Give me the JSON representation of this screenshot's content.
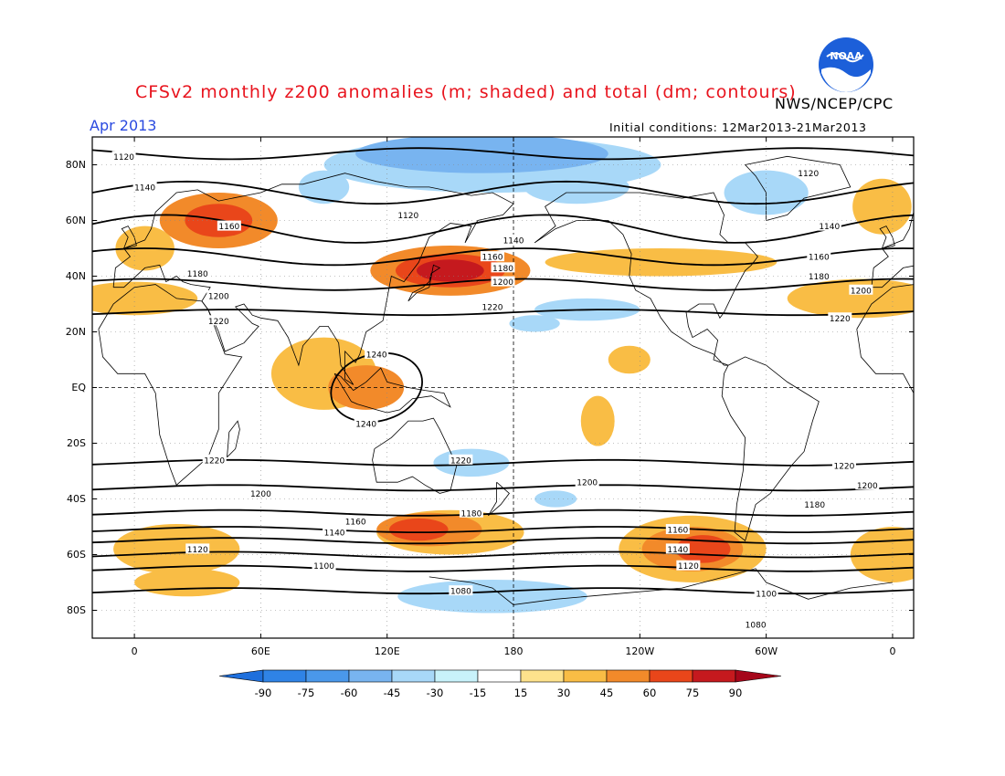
{
  "header": {
    "title": "CFSv2 monthly z200 anomalies (m; shaded) and total (dm; contours)",
    "agency": "NWS/NCEP/CPC",
    "month": "Apr 2013",
    "initial_conditions": "Initial conditions: 12Mar2013-21Mar2013",
    "logo_text": "NOAA"
  },
  "map": {
    "lat_labels": [
      "80N",
      "60N",
      "40N",
      "20N",
      "EQ",
      "20S",
      "40S",
      "60S",
      "80S"
    ],
    "lat_values": [
      80,
      60,
      40,
      20,
      0,
      -20,
      -40,
      -60,
      -80
    ],
    "lon_labels": [
      "0",
      "60E",
      "120E",
      "180",
      "120W",
      "60W",
      "0"
    ],
    "lon_values": [
      0,
      60,
      120,
      180,
      240,
      300,
      360
    ],
    "lat_range": [
      -90,
      90
    ],
    "lon_range": [
      -20,
      370
    ],
    "contours": [
      {
        "label": "1120",
        "lat": 84,
        "amp": -2,
        "phase": 0
      },
      {
        "label": "1140",
        "lat": 70,
        "amp": 4,
        "phase": 20
      },
      {
        "label": "1160",
        "lat": 57,
        "amp": 5,
        "phase": 30
      },
      {
        "label": "1180",
        "lat": 47,
        "amp": 3,
        "phase": 40
      },
      {
        "label": "1200",
        "lat": 37,
        "amp": 2,
        "phase": 40
      },
      {
        "label": "1220",
        "lat": 27,
        "amp": 1,
        "phase": 0
      },
      {
        "label": "1220",
        "lat": -27,
        "amp": 1,
        "phase": 0
      },
      {
        "label": "1200",
        "lat": -36,
        "amp": 1,
        "phase": 0
      },
      {
        "label": "1180",
        "lat": -45,
        "amp": 1,
        "phase": 0
      },
      {
        "label": "1160",
        "lat": -51,
        "amp": 1,
        "phase": 0
      },
      {
        "label": "1140",
        "lat": -55,
        "amp": 1,
        "phase": 0
      },
      {
        "label": "1120",
        "lat": -60,
        "amp": 1,
        "phase": 0
      },
      {
        "label": "1100",
        "lat": -65,
        "amp": 1,
        "phase": 0
      },
      {
        "label": "1080",
        "lat": -73,
        "amp": 1,
        "phase": 0
      }
    ],
    "contour_label_positions": [
      {
        "text": "1120",
        "lon": -5,
        "lat": 83
      },
      {
        "text": "1120",
        "lon": 320,
        "lat": 77
      },
      {
        "text": "1140",
        "lon": 5,
        "lat": 72
      },
      {
        "text": "1120",
        "lon": 130,
        "lat": 62
      },
      {
        "text": "1160",
        "lon": 45,
        "lat": 58
      },
      {
        "text": "1140",
        "lon": 180,
        "lat": 53
      },
      {
        "text": "1140",
        "lon": 330,
        "lat": 58
      },
      {
        "text": "1160",
        "lon": 170,
        "lat": 47
      },
      {
        "text": "1180",
        "lon": 175,
        "lat": 43
      },
      {
        "text": "1200",
        "lon": 175,
        "lat": 38
      },
      {
        "text": "1160",
        "lon": 325,
        "lat": 47
      },
      {
        "text": "1180",
        "lon": 30,
        "lat": 41
      },
      {
        "text": "1180",
        "lon": 325,
        "lat": 40
      },
      {
        "text": "1200",
        "lon": 40,
        "lat": 33
      },
      {
        "text": "1200",
        "lon": 345,
        "lat": 35
      },
      {
        "text": "1220",
        "lon": 40,
        "lat": 24
      },
      {
        "text": "1220",
        "lon": 170,
        "lat": 29
      },
      {
        "text": "1220",
        "lon": 335,
        "lat": 25
      },
      {
        "text": "1240",
        "lon": 115,
        "lat": 12
      },
      {
        "text": "1240",
        "lon": 110,
        "lat": -13
      },
      {
        "text": "1220",
        "lon": 38,
        "lat": -26
      },
      {
        "text": "1220",
        "lon": 155,
        "lat": -26
      },
      {
        "text": "1220",
        "lon": 337,
        "lat": -28
      },
      {
        "text": "1200",
        "lon": 60,
        "lat": -38
      },
      {
        "text": "1200",
        "lon": 215,
        "lat": -34
      },
      {
        "text": "1200",
        "lon": 348,
        "lat": -35
      },
      {
        "text": "1180",
        "lon": 160,
        "lat": -45
      },
      {
        "text": "1180",
        "lon": 323,
        "lat": -42
      },
      {
        "text": "1160",
        "lon": 105,
        "lat": -48
      },
      {
        "text": "1160",
        "lon": 258,
        "lat": -51
      },
      {
        "text": "1140",
        "lon": 95,
        "lat": -52
      },
      {
        "text": "1140",
        "lon": 258,
        "lat": -58
      },
      {
        "text": "1120",
        "lon": 30,
        "lat": -58
      },
      {
        "text": "1120",
        "lon": 263,
        "lat": -64
      },
      {
        "text": "1100",
        "lon": 90,
        "lat": -64
      },
      {
        "text": "1100",
        "lon": 300,
        "lat": -74
      },
      {
        "text": "1080",
        "lon": 155,
        "lat": -73
      },
      {
        "text": "1080",
        "lon": 295,
        "lat": -85
      }
    ],
    "anomalies": [
      {
        "lon": 40,
        "lat": 60,
        "rx": 28,
        "ry": 10,
        "value": 45
      },
      {
        "lon": 40,
        "lat": 60,
        "rx": 16,
        "ry": 6,
        "value": 60
      },
      {
        "lon": 150,
        "lat": 42,
        "rx": 38,
        "ry": 9,
        "value": 45
      },
      {
        "lon": 150,
        "lat": 42,
        "rx": 26,
        "ry": 6,
        "value": 60
      },
      {
        "lon": 150,
        "lat": 42,
        "rx": 16,
        "ry": 4,
        "value": 75
      },
      {
        "lon": 5,
        "lat": 50,
        "rx": 14,
        "ry": 8,
        "value": 30
      },
      {
        "lon": 0,
        "lat": 32,
        "rx": 30,
        "ry": 6,
        "value": 30
      },
      {
        "lon": 345,
        "lat": 32,
        "rx": 35,
        "ry": 7,
        "value": 30
      },
      {
        "lon": 355,
        "lat": 65,
        "rx": 14,
        "ry": 10,
        "value": 30
      },
      {
        "lon": 250,
        "lat": 45,
        "rx": 55,
        "ry": 5,
        "value": 30
      },
      {
        "lon": 90,
        "lat": 5,
        "rx": 25,
        "ry": 13,
        "value": 30
      },
      {
        "lon": 110,
        "lat": 0,
        "rx": 18,
        "ry": 8,
        "value": 45
      },
      {
        "lon": 220,
        "lat": -12,
        "rx": 8,
        "ry": 9,
        "value": 30
      },
      {
        "lon": 235,
        "lat": 10,
        "rx": 10,
        "ry": 5,
        "value": 30
      },
      {
        "lon": 150,
        "lat": -52,
        "rx": 35,
        "ry": 8,
        "value": 30
      },
      {
        "lon": 140,
        "lat": -51,
        "rx": 25,
        "ry": 6,
        "value": 45
      },
      {
        "lon": 135,
        "lat": -51,
        "rx": 14,
        "ry": 4,
        "value": 60
      },
      {
        "lon": 265,
        "lat": -58,
        "rx": 35,
        "ry": 12,
        "value": 30
      },
      {
        "lon": 265,
        "lat": -58,
        "rx": 24,
        "ry": 8,
        "value": 45
      },
      {
        "lon": 270,
        "lat": -58,
        "rx": 13,
        "ry": 5,
        "value": 60
      },
      {
        "lon": 20,
        "lat": -58,
        "rx": 30,
        "ry": 9,
        "value": 30
      },
      {
        "lon": 25,
        "lat": -70,
        "rx": 25,
        "ry": 5,
        "value": 30
      },
      {
        "lon": 360,
        "lat": -60,
        "rx": 20,
        "ry": 10,
        "value": 30
      },
      {
        "lon": 170,
        "lat": 80,
        "rx": 80,
        "ry": 10,
        "value": -30
      },
      {
        "lon": 165,
        "lat": 84,
        "rx": 60,
        "ry": 7,
        "value": -45
      },
      {
        "lon": 210,
        "lat": 72,
        "rx": 25,
        "ry": 6,
        "value": -30
      },
      {
        "lon": 300,
        "lat": 70,
        "rx": 20,
        "ry": 8,
        "value": -30
      },
      {
        "lon": 90,
        "lat": 72,
        "rx": 12,
        "ry": 6,
        "value": -30
      },
      {
        "lon": 215,
        "lat": 28,
        "rx": 25,
        "ry": 4,
        "value": -30
      },
      {
        "lon": 190,
        "lat": 23,
        "rx": 12,
        "ry": 3,
        "value": -30
      },
      {
        "lon": 160,
        "lat": -27,
        "rx": 18,
        "ry": 5,
        "value": -30
      },
      {
        "lon": 170,
        "lat": -75,
        "rx": 45,
        "ry": 6,
        "value": -30
      },
      {
        "lon": 200,
        "lat": -40,
        "rx": 10,
        "ry": 3,
        "value": -30
      }
    ]
  },
  "colorbar": {
    "labels": [
      "-90",
      "-75",
      "-60",
      "-45",
      "-30",
      "-15",
      "15",
      "30",
      "45",
      "60",
      "75",
      "90"
    ],
    "colors": [
      "#1e6fdc",
      "#2f83e6",
      "#4a98ea",
      "#78b4f0",
      "#a8d8f8",
      "#c8f2fa",
      "#ffffff",
      "#fde28c",
      "#f9bd45",
      "#f28a2a",
      "#e9461a",
      "#c5191e",
      "#a5061a"
    ]
  }
}
